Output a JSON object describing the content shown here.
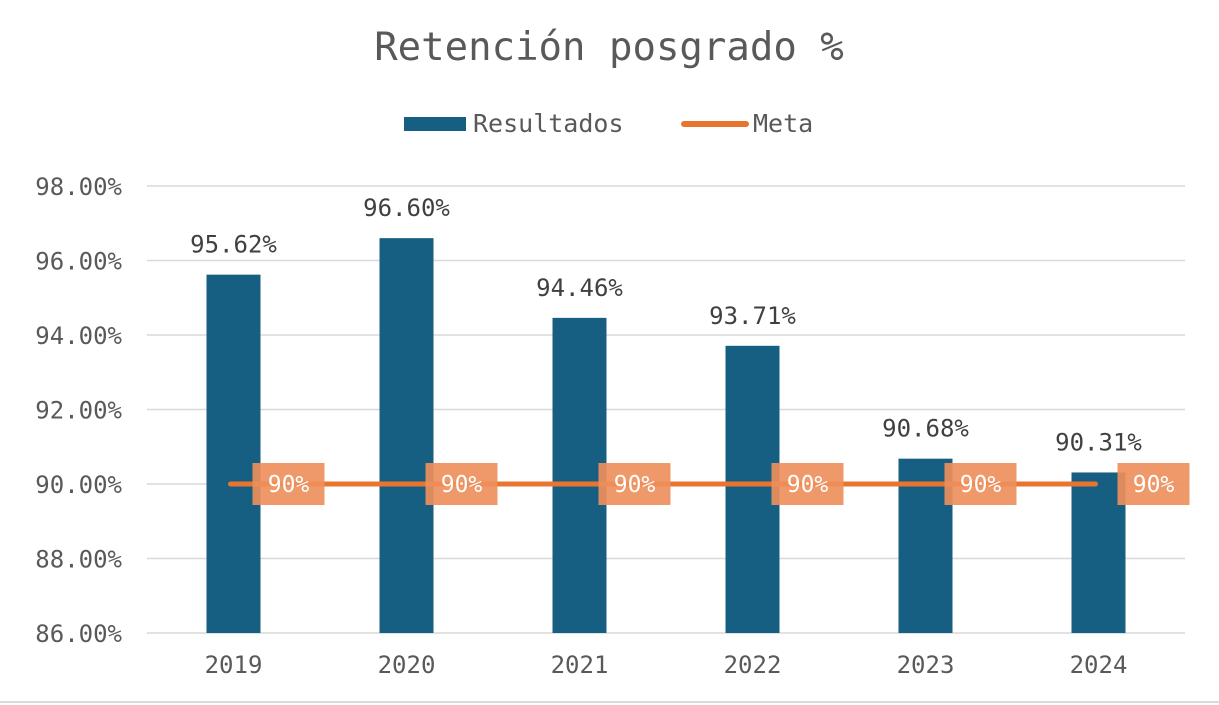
{
  "chart_data": {
    "type": "bar",
    "title": "Retención posgrado %",
    "xlabel": "",
    "ylabel": "",
    "categories": [
      "2019",
      "2020",
      "2021",
      "2022",
      "2023",
      "2024"
    ],
    "series": [
      {
        "name": "Resultados",
        "kind": "bar",
        "values": [
          95.62,
          96.6,
          94.46,
          93.71,
          90.68,
          90.31
        ],
        "labels": [
          "95.62%",
          "96.60%",
          "94.46%",
          "93.71%",
          "90.68%",
          "90.31%"
        ],
        "color": "#175f82"
      },
      {
        "name": "Meta",
        "kind": "line",
        "values": [
          90,
          90,
          90,
          90,
          90,
          90
        ],
        "labels": [
          "90%",
          "90%",
          "90%",
          "90%",
          "90%",
          "90%"
        ],
        "color": "#e8742f",
        "label_bg": "#ee8f5c"
      }
    ],
    "ylim": [
      86,
      98
    ],
    "yticks": [
      86,
      88,
      90,
      92,
      94,
      96,
      98
    ],
    "ytick_labels": [
      "86.00%",
      "88.00%",
      "90.00%",
      "92.00%",
      "94.00%",
      "96.00%",
      "98.00%"
    ],
    "grid": true,
    "legend_position": "top-center"
  }
}
